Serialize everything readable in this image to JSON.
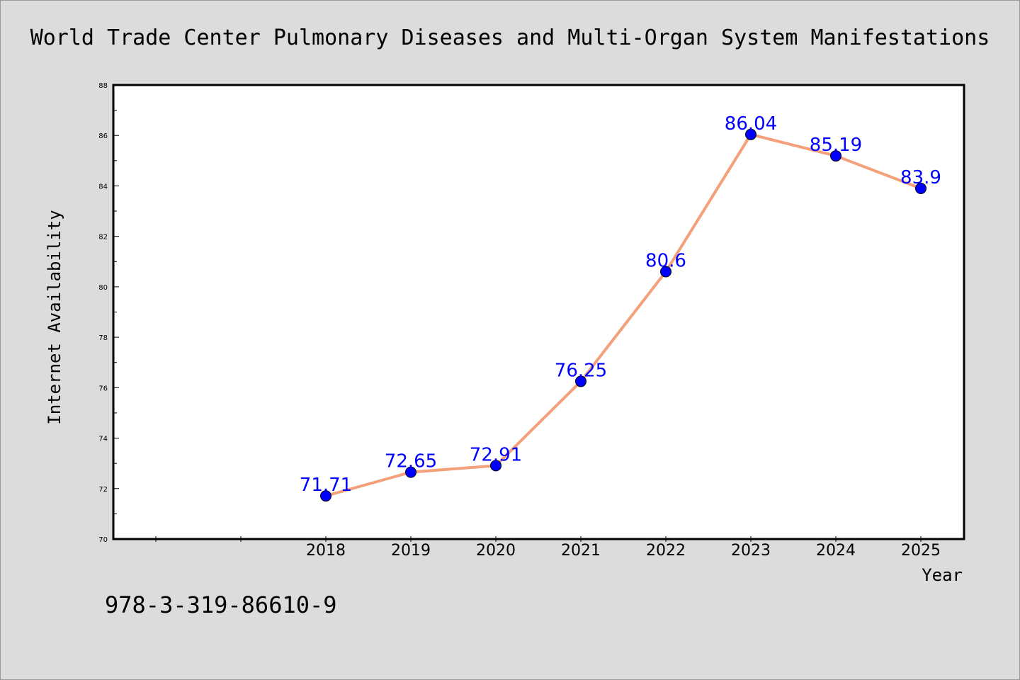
{
  "chart_data": {
    "type": "line",
    "title": "World Trade Center Pulmonary Diseases and Multi-Organ System Manifestations",
    "xlabel": "Year",
    "ylabel": "Internet Availability",
    "x": [
      "2018",
      "2019",
      "2020",
      "2021",
      "2022",
      "2023",
      "2024",
      "2025"
    ],
    "values": [
      71.71,
      72.65,
      72.91,
      76.25,
      80.6,
      86.04,
      85.19,
      83.9
    ],
    "data_labels": [
      "71.71",
      "72.65",
      "72.91",
      "76.25",
      "80.6",
      "86.04",
      "85.19",
      "83.9"
    ],
    "ylim": [
      70,
      88
    ],
    "yticks": [
      "70",
      "72",
      "74",
      "76",
      "78",
      "80",
      "82",
      "84",
      "86",
      "88"
    ],
    "grid": false,
    "legend": "none",
    "colors": {
      "line": "#f4a07a",
      "marker": "#0000ff",
      "label": "#0000ff",
      "background": "#dcdcdc",
      "plot_bg": "#ffffff"
    }
  },
  "footer": {
    "isbn": "978-3-319-86610-9"
  }
}
